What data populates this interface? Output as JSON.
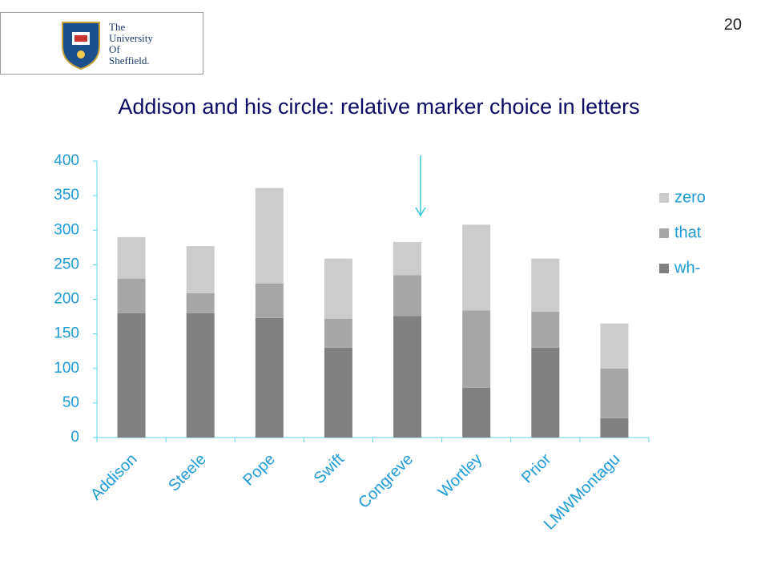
{
  "logo": {
    "lines": [
      "The",
      "University",
      "Of",
      "Sheffield."
    ]
  },
  "page_number": "20",
  "chart_data": {
    "type": "stacked-bar",
    "title": "Addison and his circle: relative marker choice in letters",
    "categories": [
      "Addison",
      "Steele",
      "Pope",
      "Swift",
      "Congreve",
      "Wortley",
      "Prior",
      "LMWMontagu"
    ],
    "series": [
      {
        "name": "wh-",
        "color": "#808080",
        "values": [
          180,
          180,
          173,
          130,
          176,
          72,
          130,
          28
        ]
      },
      {
        "name": "that",
        "color": "#a6a6a6",
        "values": [
          50,
          29,
          50,
          42,
          59,
          112,
          52,
          72
        ]
      },
      {
        "name": "zero",
        "color": "#cccccc",
        "values": [
          60,
          68,
          138,
          87,
          48,
          124,
          77,
          65
        ]
      }
    ],
    "ylim": [
      0,
      400
    ],
    "yticks": [
      0,
      50,
      100,
      150,
      200,
      250,
      300,
      350,
      400
    ],
    "grid": false,
    "legend": "right"
  }
}
